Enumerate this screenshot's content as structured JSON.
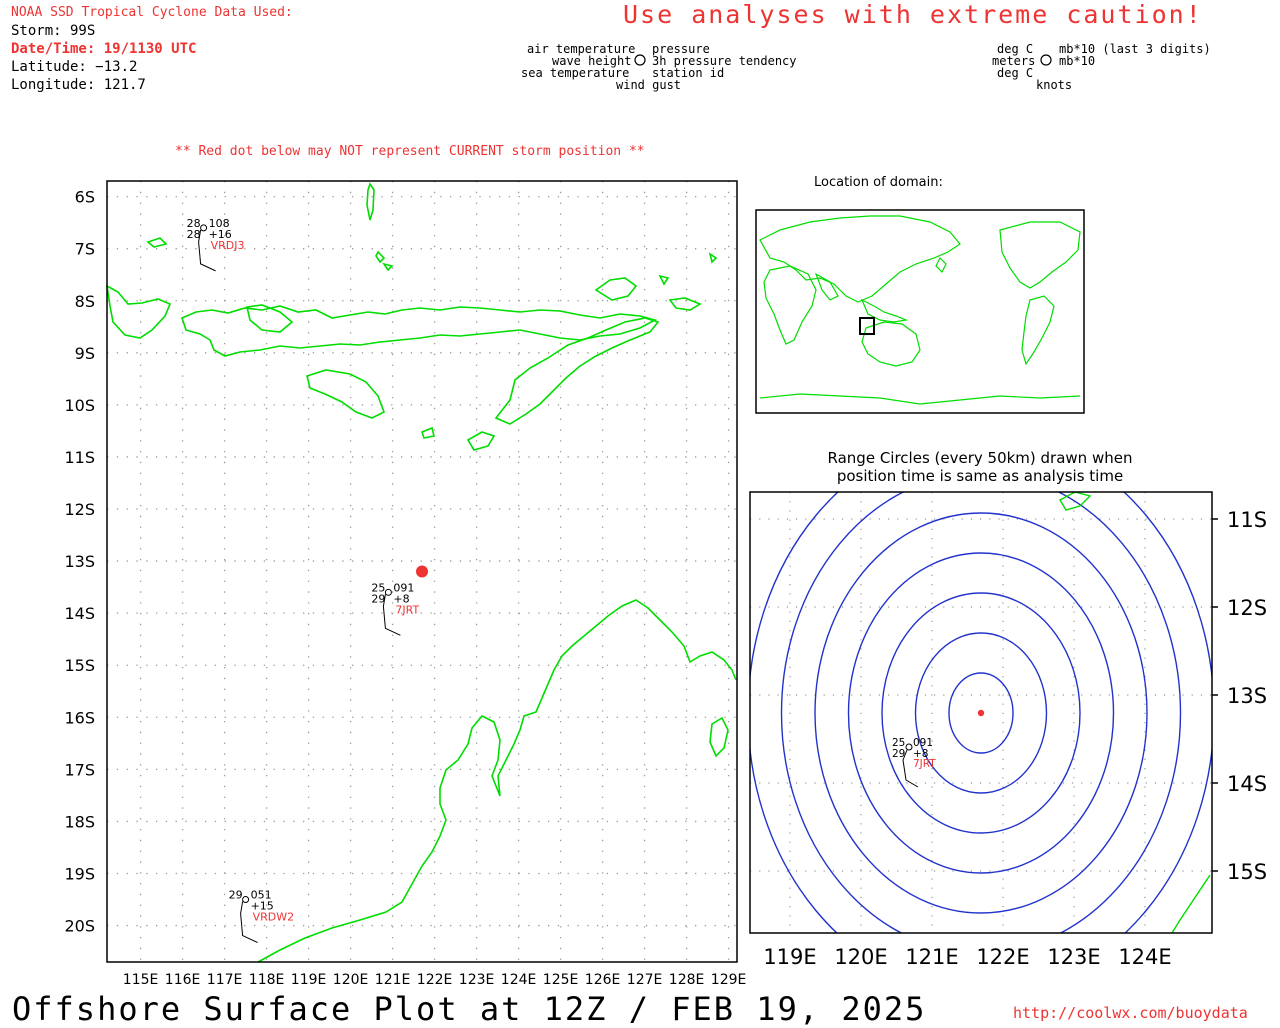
{
  "header": {
    "source_line": "NOAA SSD Tropical Cyclone Data Used:",
    "storm": "Storm: 99S",
    "datetime": "Date/Time: 19/1130 UTC",
    "latitude": "Latitude: −13.2",
    "longitude": "Longitude: 121.7",
    "caution": "Use analyses with extreme caution!"
  },
  "legend": {
    "left_labels": [
      "air temperature",
      "wave height",
      "sea temperature"
    ],
    "right_labels": [
      "pressure",
      "3h pressure tendency",
      "station id"
    ],
    "bottom_label": "wind gust",
    "units_left": [
      "deg C",
      "meters",
      "deg C"
    ],
    "units_right": [
      "mb*10 (last 3 digits)",
      "mb*10"
    ],
    "units_bottom": "knots"
  },
  "red_dot_note": "** Red dot below may NOT represent CURRENT storm position **",
  "main_map": {
    "lat_labels": [
      "6S",
      "7S",
      "8S",
      "9S",
      "10S",
      "11S",
      "12S",
      "13S",
      "14S",
      "15S",
      "16S",
      "17S",
      "18S",
      "19S",
      "20S"
    ],
    "lon_labels": [
      "115E",
      "116E",
      "117E",
      "118E",
      "119E",
      "120E",
      "121E",
      "122E",
      "123E",
      "124E",
      "125E",
      "126E",
      "127E",
      "128E",
      "129E"
    ],
    "lat_range": [
      -20.7,
      -5.7
    ],
    "lon_range": [
      114.2,
      129.2
    ],
    "storm_position": {
      "lat": -13.2,
      "lon": 121.7
    },
    "stations": [
      {
        "id": "VRDJ3",
        "air_temp": "28",
        "pressure": "108",
        "sea_temp": "28",
        "tendency": "+16",
        "lat": -6.6,
        "lon": 116.5
      },
      {
        "id": "7JRT",
        "air_temp": "25",
        "pressure": "091",
        "sea_temp": "29",
        "tendency": "+8",
        "lat": -13.6,
        "lon": 120.9
      },
      {
        "id": "VRDW2",
        "air_temp": "29",
        "pressure": "051",
        "sea_temp": "",
        "tendency": "+15",
        "lat": -19.5,
        "lon": 117.5
      }
    ]
  },
  "inset_location": {
    "title": "Location of domain:"
  },
  "range_map": {
    "title_line1": "Range Circles (every 50km) drawn when",
    "title_line2": "position time is same as analysis time",
    "lat_labels": [
      "11S",
      "12S",
      "13S",
      "14S",
      "15S"
    ],
    "lon_labels": [
      "119E",
      "120E",
      "121E",
      "122E",
      "123E",
      "124E"
    ],
    "station": {
      "id": "7JRT",
      "air_temp": "25",
      "pressure": "091",
      "sea_temp": "29",
      "tendency": "+8"
    }
  },
  "footer": {
    "title": "Offshore Surface Plot at 12Z / FEB 19, 2025",
    "url": "http://coolwx.com/buoydata"
  },
  "colors": {
    "coast": "#00dd00",
    "label_red": "#ee3333",
    "range_circle": "#2233cc",
    "grid": "#999999"
  }
}
